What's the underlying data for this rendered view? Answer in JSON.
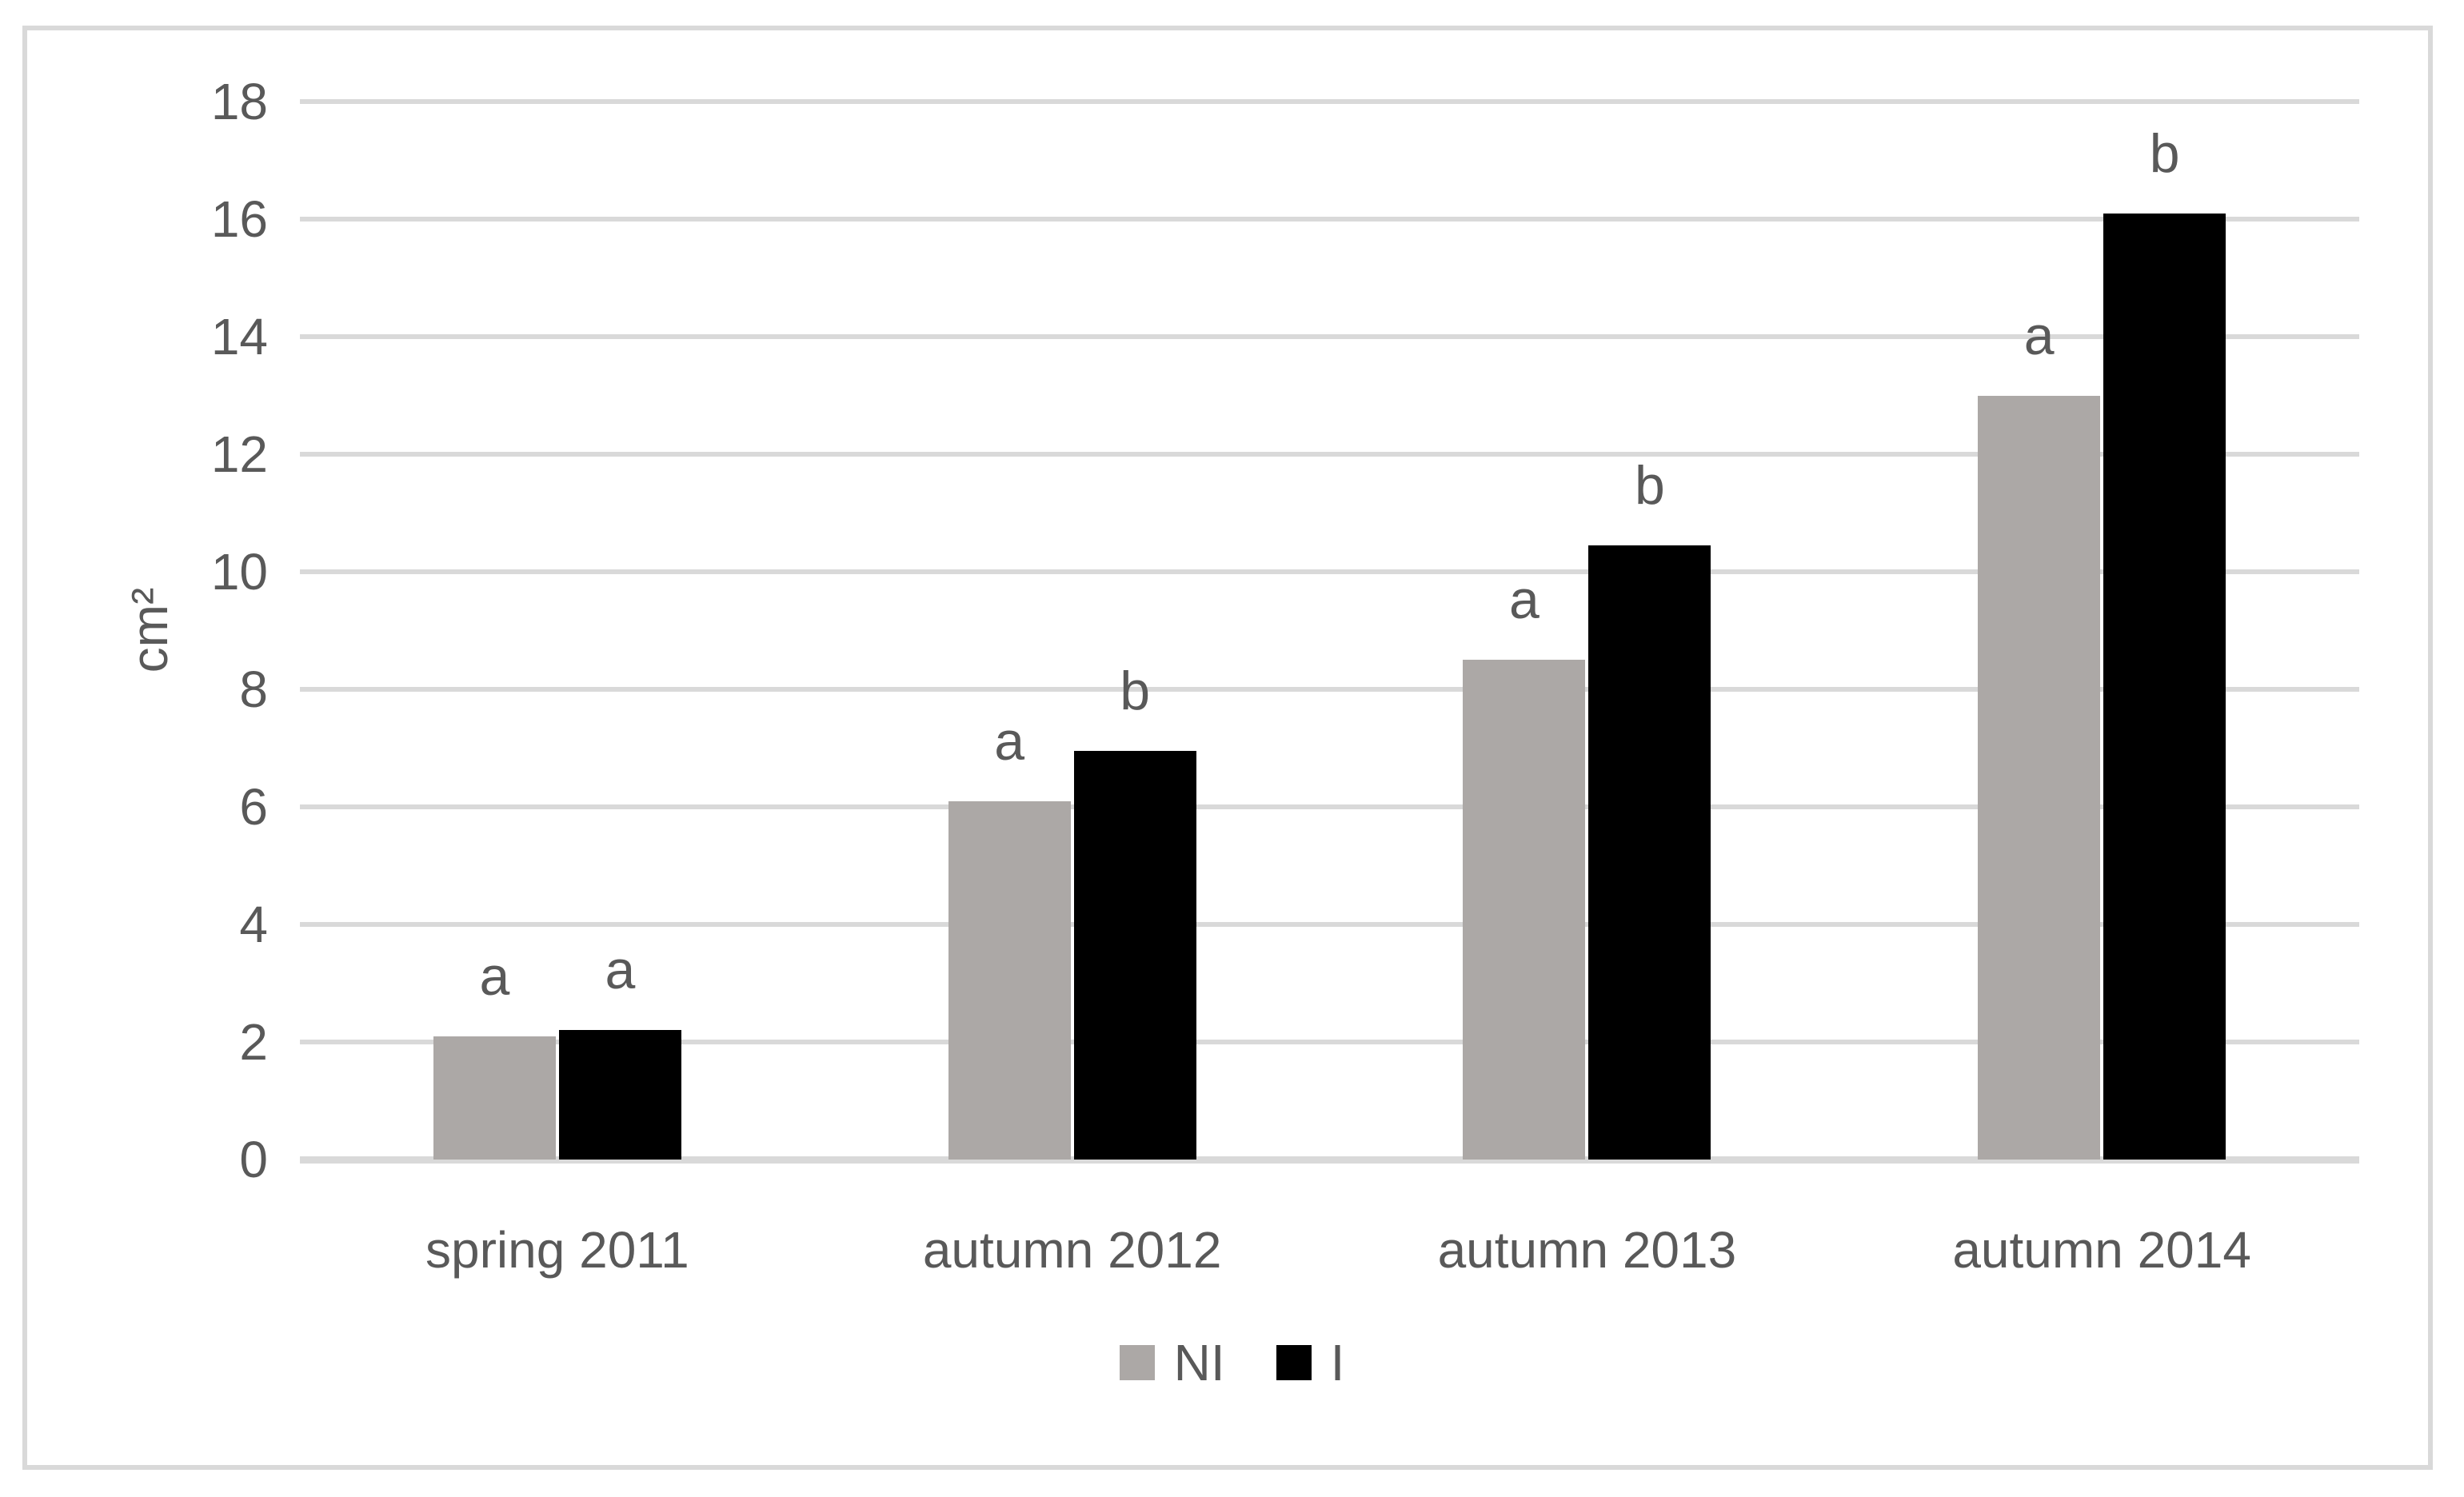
{
  "chart_data": {
    "type": "bar",
    "title": "",
    "ylabel": "cm²",
    "ylim": [
      0,
      18
    ],
    "ytick_step": 2,
    "yticks": [
      "0",
      "2",
      "4",
      "6",
      "8",
      "10",
      "12",
      "14",
      "16",
      "18"
    ],
    "grid": true,
    "legend_position": "bottom center",
    "categories": [
      "spring 2011",
      "autumn 2012",
      "autumn 2013",
      "autumn 2014"
    ],
    "series": [
      {
        "name": "NI",
        "color": "#ACA8A6",
        "values": [
          2.1,
          6.1,
          8.5,
          13.0
        ],
        "point_labels": [
          "a",
          "a",
          "a",
          "a"
        ]
      },
      {
        "name": "I",
        "color": "#000000",
        "values": [
          2.2,
          6.95,
          10.45,
          16.1
        ],
        "point_labels": [
          "a",
          "b",
          "b",
          "b"
        ]
      }
    ]
  },
  "colors": {
    "gridline": "#D9D9D9",
    "frame_border": "#D9D9D9",
    "axis_text": "#595959",
    "background": "#FFFFFF"
  }
}
